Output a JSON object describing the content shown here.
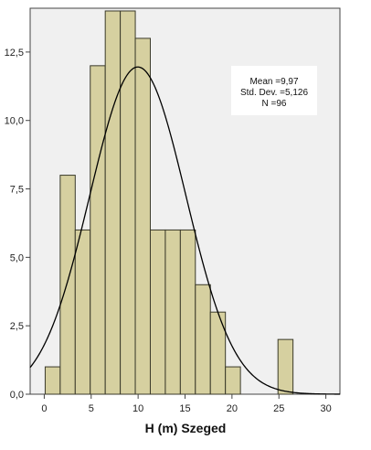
{
  "chart_data": {
    "type": "bar",
    "title": "",
    "xlabel": "H (m) Szeged",
    "ylabel": "",
    "bin_width": 1.6,
    "bins": [
      {
        "x0": 0.1,
        "x1": 1.7,
        "value": 1
      },
      {
        "x0": 1.7,
        "x1": 3.3,
        "value": 8
      },
      {
        "x0": 3.3,
        "x1": 4.9,
        "value": 6
      },
      {
        "x0": 4.9,
        "x1": 6.5,
        "value": 12
      },
      {
        "x0": 6.5,
        "x1": 8.1,
        "value": 14
      },
      {
        "x0": 8.1,
        "x1": 9.7,
        "value": 14
      },
      {
        "x0": 9.7,
        "x1": 11.3,
        "value": 13
      },
      {
        "x0": 11.3,
        "x1": 12.9,
        "value": 6
      },
      {
        "x0": 12.9,
        "x1": 14.5,
        "value": 6
      },
      {
        "x0": 14.5,
        "x1": 16.1,
        "value": 6
      },
      {
        "x0": 16.1,
        "x1": 17.7,
        "value": 4
      },
      {
        "x0": 17.7,
        "x1": 19.3,
        "value": 3
      },
      {
        "x0": 19.3,
        "x1": 20.9,
        "value": 1
      },
      {
        "x0": 24.9,
        "x1": 26.5,
        "value": 2
      }
    ],
    "normal_curve": {
      "mean": 9.97,
      "sd": 5.126,
      "n": 96
    },
    "xlim": [
      -1.5,
      31.5
    ],
    "ylim": [
      0,
      14.1
    ],
    "x_ticks": [
      "0",
      "5",
      "10",
      "15",
      "20",
      "25",
      "30"
    ],
    "x_tick_values": [
      0,
      5,
      10,
      15,
      20,
      25,
      30
    ],
    "y_ticks": [
      "0,0",
      "2,5",
      "5,0",
      "7,5",
      "10,0",
      "12,5"
    ],
    "y_tick_values": [
      0,
      2.5,
      5,
      7.5,
      10,
      12.5
    ],
    "stats_box": [
      "Mean =9,97",
      "Std. Dev. =5,126",
      "N =96"
    ],
    "grid": false,
    "colors": {
      "plot_background": "#f0f0f0",
      "bar_fill": "#d6d0a0",
      "bar_stroke": "#3a3a2a",
      "curve": "#000000",
      "stats_box_fill": "#ffffff"
    }
  }
}
